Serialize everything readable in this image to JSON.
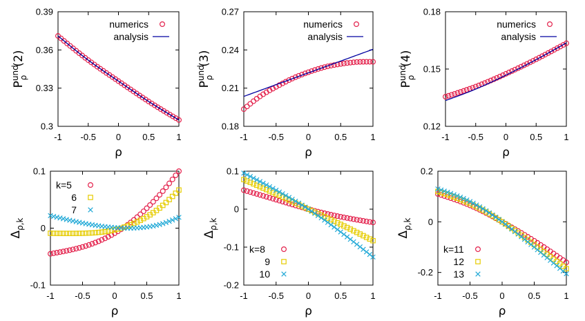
{
  "colors": {
    "numerics": "#e3204b",
    "analysis": "#0000a0",
    "k_first": "#e3204b",
    "k_second": "#e6cc00",
    "k_third": "#1fa8d6"
  },
  "chart_data": [
    {
      "type": "line",
      "ylabel": "P_ρ^und(2)",
      "xlabel": "ρ",
      "xlim": [
        -1,
        1
      ],
      "ylim": [
        0.3,
        0.39
      ],
      "xticks": [
        "-1",
        "-0.5",
        "0",
        "0.5",
        "1"
      ],
      "yticks": [
        "0.3",
        "0.33",
        "0.36",
        "0.39"
      ],
      "legend_position": "top-right",
      "series": [
        {
          "name": "numerics",
          "marker": "circle",
          "points": [
            [
              -1,
              0.371
            ],
            [
              -0.5,
              0.352
            ],
            [
              0,
              0.3355
            ],
            [
              0.5,
              0.3195
            ],
            [
              1,
              0.305
            ]
          ]
        },
        {
          "name": "analysis",
          "marker": "line",
          "points": [
            [
              -1,
              0.371
            ],
            [
              -0.5,
              0.352
            ],
            [
              0,
              0.3355
            ],
            [
              0.5,
              0.3195
            ],
            [
              1,
              0.305
            ]
          ]
        }
      ]
    },
    {
      "type": "line",
      "ylabel": "P_ρ^und(3)",
      "xlabel": "ρ",
      "xlim": [
        -1,
        1
      ],
      "ylim": [
        0.18,
        0.27
      ],
      "xticks": [
        "-1",
        "-0.5",
        "0",
        "0.5",
        "1"
      ],
      "yticks": [
        "0.18",
        "0.21",
        "0.24",
        "0.27"
      ],
      "legend_position": "top-right",
      "series": [
        {
          "name": "numerics",
          "marker": "circle",
          "points": [
            [
              -1,
              0.1935
            ],
            [
              -0.75,
              0.2035
            ],
            [
              -0.5,
              0.211
            ],
            [
              -0.25,
              0.2175
            ],
            [
              0,
              0.2225
            ],
            [
              0.25,
              0.2265
            ],
            [
              0.5,
              0.229
            ],
            [
              0.75,
              0.2305
            ],
            [
              1,
              0.2307
            ]
          ]
        },
        {
          "name": "analysis",
          "marker": "line",
          "points": [
            [
              -1,
              0.2035
            ],
            [
              1,
              0.2405
            ]
          ]
        }
      ]
    },
    {
      "type": "line",
      "ylabel": "P_ρ^und(4)",
      "xlabel": "ρ",
      "xlim": [
        -1,
        1
      ],
      "ylim": [
        0.12,
        0.18
      ],
      "xticks": [
        "-1",
        "-0.5",
        "0",
        "0.5",
        "1"
      ],
      "yticks": [
        "0.12",
        "0.15",
        "0.18"
      ],
      "legend_position": "top-right",
      "series": [
        {
          "name": "numerics",
          "marker": "circle",
          "points": [
            [
              -1,
              0.1355
            ],
            [
              -0.5,
              0.1408
            ],
            [
              0,
              0.1475
            ],
            [
              0.5,
              0.1551
            ],
            [
              1,
              0.1635
            ]
          ]
        },
        {
          "name": "analysis",
          "marker": "line",
          "points": [
            [
              -1,
              0.1335
            ],
            [
              -0.5,
              0.1395
            ],
            [
              0,
              0.1468
            ],
            [
              0.5,
              0.1549
            ],
            [
              1,
              0.1637
            ]
          ]
        }
      ]
    },
    {
      "type": "scatter",
      "ylabel": "Δ_ρ,k",
      "xlabel": "ρ",
      "xlim": [
        -1,
        1
      ],
      "ylim": [
        -0.1,
        0.1
      ],
      "xticks": [
        "-1",
        "-0.5",
        "0",
        "0.5",
        "1"
      ],
      "yticks": [
        "-0.1",
        "0",
        "0.1"
      ],
      "legend_position": "top-left",
      "series": [
        {
          "name": "k=5",
          "marker": "circle",
          "points": [
            [
              -1,
              -0.045
            ],
            [
              -0.5,
              -0.033
            ],
            [
              0,
              -0.009
            ],
            [
              0.25,
              0.01
            ],
            [
              0.5,
              0.035
            ],
            [
              0.75,
              0.065
            ],
            [
              1,
              0.1
            ]
          ]
        },
        {
          "name": "6",
          "marker": "square",
          "points": [
            [
              -1,
              -0.009
            ],
            [
              -0.5,
              -0.009
            ],
            [
              0,
              -0.003
            ],
            [
              0.25,
              0.006
            ],
            [
              0.5,
              0.02
            ],
            [
              0.75,
              0.04
            ],
            [
              1,
              0.067
            ]
          ]
        },
        {
          "name": "7",
          "marker": "cross",
          "points": [
            [
              -1,
              0.022
            ],
            [
              -0.5,
              0.009
            ],
            [
              0,
              0.001
            ],
            [
              0.25,
              0.0
            ],
            [
              0.5,
              0.002
            ],
            [
              0.75,
              0.008
            ],
            [
              1,
              0.019
            ]
          ]
        }
      ]
    },
    {
      "type": "scatter",
      "ylabel": "Δ_ρ,k",
      "xlabel": "ρ",
      "xlim": [
        -1,
        1
      ],
      "ylim": [
        -0.2,
        0.1
      ],
      "xticks": [
        "-1",
        "-0.5",
        "0",
        "0.5",
        "1"
      ],
      "yticks": [
        "-0.2",
        "-0.1",
        "0",
        "0.1"
      ],
      "legend_position": "bottom-left",
      "series": [
        {
          "name": "k=8",
          "marker": "circle",
          "points": [
            [
              -1,
              0.05
            ],
            [
              -0.5,
              0.025
            ],
            [
              0,
              0.0
            ],
            [
              0.5,
              -0.02
            ],
            [
              1,
              -0.035
            ]
          ]
        },
        {
          "name": "9",
          "marker": "square",
          "points": [
            [
              -1,
              0.078
            ],
            [
              -0.5,
              0.04
            ],
            [
              0,
              0.0
            ],
            [
              0.5,
              -0.04
            ],
            [
              1,
              -0.083
            ]
          ]
        },
        {
          "name": "10",
          "marker": "cross",
          "points": [
            [
              -1,
              0.095
            ],
            [
              -0.5,
              0.05
            ],
            [
              0,
              0.0
            ],
            [
              0.5,
              -0.06
            ],
            [
              1,
              -0.126
            ]
          ]
        }
      ]
    },
    {
      "type": "scatter",
      "ylabel": "Δ_ρ,k",
      "xlabel": "ρ",
      "xlim": [
        -1,
        1
      ],
      "ylim": [
        -0.25,
        0.2
      ],
      "xticks": [
        "-1",
        "-0.5",
        "0",
        "0.5",
        "1"
      ],
      "yticks": [
        "-0.2",
        "0",
        "0.2"
      ],
      "legend_position": "bottom-left",
      "series": [
        {
          "name": "k=11",
          "marker": "circle",
          "points": [
            [
              -1,
              0.11
            ],
            [
              -0.5,
              0.065
            ],
            [
              0,
              0.0
            ],
            [
              0.5,
              -0.075
            ],
            [
              1,
              -0.16
            ]
          ]
        },
        {
          "name": "12",
          "marker": "square",
          "points": [
            [
              -1,
              0.12
            ],
            [
              -0.5,
              0.072
            ],
            [
              0,
              0.0
            ],
            [
              0.5,
              -0.09
            ],
            [
              1,
              -0.185
            ]
          ]
        },
        {
          "name": "13",
          "marker": "cross",
          "points": [
            [
              -1,
              0.13
            ],
            [
              -0.5,
              0.08
            ],
            [
              0,
              0.0
            ],
            [
              0.5,
              -0.1
            ],
            [
              1,
              -0.205
            ]
          ]
        }
      ]
    }
  ]
}
